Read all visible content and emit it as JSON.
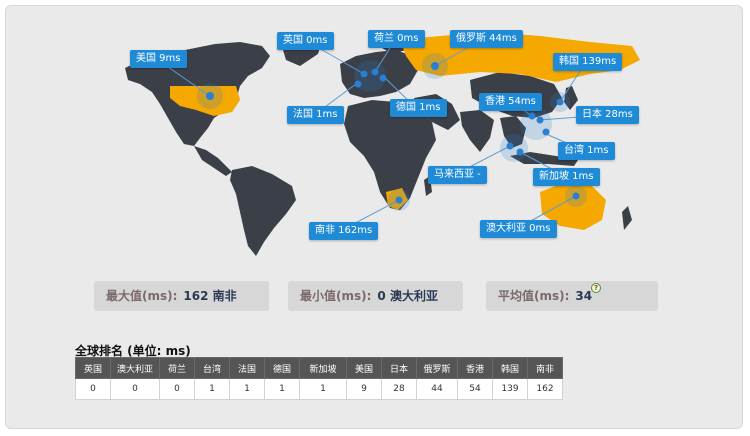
{
  "map_points": [
    {
      "name": "美国",
      "label": "美国 9ms"
    },
    {
      "name": "英国",
      "label": "英国 0ms"
    },
    {
      "name": "荷兰",
      "label": "荷兰 0ms"
    },
    {
      "name": "俄罗斯",
      "label": "俄罗斯 44ms"
    },
    {
      "name": "韩国",
      "label": "韩国 139ms"
    },
    {
      "name": "法国",
      "label": "法国 1ms"
    },
    {
      "name": "德国",
      "label": "德国 1ms"
    },
    {
      "name": "香港",
      "label": "香港 54ms"
    },
    {
      "name": "日本",
      "label": "日本 28ms"
    },
    {
      "name": "台湾",
      "label": "台湾 1ms"
    },
    {
      "name": "马来西亚",
      "label": "马来西亚 -"
    },
    {
      "name": "新加坡",
      "label": "新加坡 1ms"
    },
    {
      "name": "南非",
      "label": "南非 162ms"
    },
    {
      "name": "澳大利亚",
      "label": "澳大利亚 0ms"
    }
  ],
  "stats": {
    "max_label": "最大值(ms):",
    "max_value": "162 南非",
    "min_label": "最小值(ms):",
    "min_value": "0 澳大利亚",
    "avg_label": "平均值(ms):",
    "avg_value": "34",
    "help_glyph": "?"
  },
  "ranking": {
    "title": "全球排名 (单位: ms)",
    "headers": [
      "英国",
      "澳大利亚",
      "荷兰",
      "台湾",
      "法国",
      "德国",
      "新加坡",
      "美国",
      "日本",
      "俄罗斯",
      "香港",
      "韩国",
      "南非"
    ],
    "values": [
      "0",
      "0",
      "0",
      "1",
      "1",
      "1",
      "1",
      "9",
      "28",
      "44",
      "54",
      "139",
      "162"
    ]
  },
  "colors": {
    "land": "#3b3f47",
    "highlight": "#f5a800",
    "label_bg": "#1f8ad6",
    "marker": "#2a7fd0"
  }
}
